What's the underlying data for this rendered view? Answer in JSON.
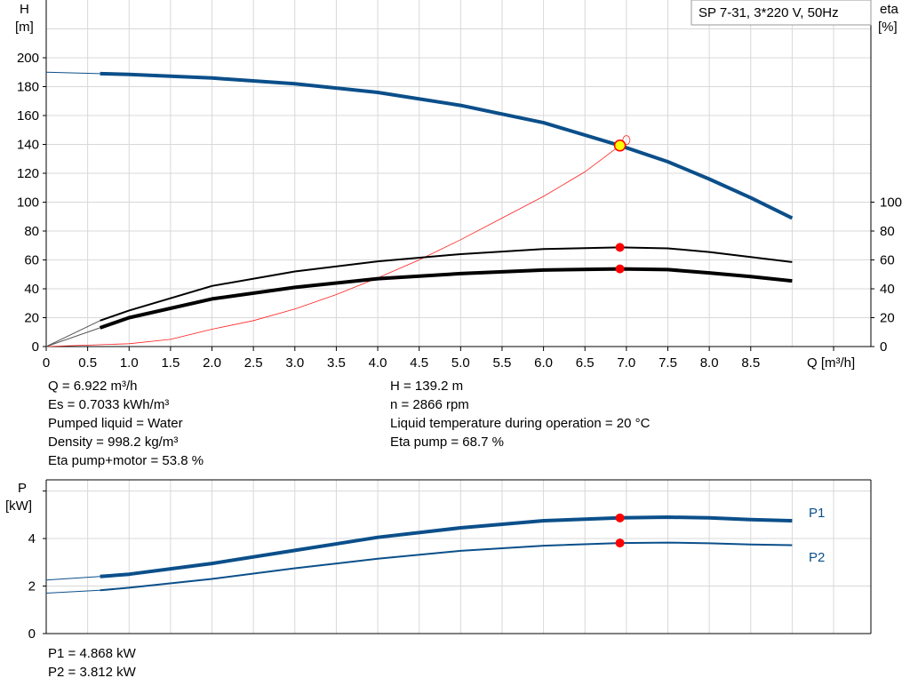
{
  "chart_data": [
    {
      "type": "line",
      "title": "SP 7-31, 3*220 V, 50Hz",
      "xlabel": "Q [m³/h]",
      "ylabel": [
        "H",
        "[m]"
      ],
      "y2label": [
        "eta",
        "[%]"
      ],
      "xlim": [
        0,
        9.95
      ],
      "ylim": [
        0,
        240
      ],
      "y2lim": [
        0,
        240
      ],
      "grid": true,
      "x_ticks": [
        "0",
        "0.5",
        "1.0",
        "1.5",
        "2.0",
        "2.5",
        "3.0",
        "3.5",
        "4.0",
        "4.5",
        "5.0",
        "5.5",
        "6.0",
        "6.5",
        "7.0",
        "7.5",
        "8.0",
        "8.5"
      ],
      "y_ticks": [
        0,
        20,
        40,
        60,
        80,
        100,
        120,
        140,
        160,
        180,
        200
      ],
      "y2_ticks": [
        0,
        20,
        40,
        60,
        80,
        100
      ],
      "series": [
        {
          "id": "H",
          "axis": "left",
          "color": "#0b4f8a",
          "x": [
            0,
            0.65,
            1,
            2,
            3,
            4,
            5,
            6,
            6.922,
            7.5,
            8,
            8.5,
            9
          ],
          "values": [
            190,
            189,
            188.5,
            186,
            182,
            176,
            167,
            155,
            139.2,
            128,
            116,
            103,
            89
          ]
        },
        {
          "id": "eta-pump",
          "axis": "right",
          "color": "#000000",
          "x": [
            0,
            0.65,
            1,
            2,
            3,
            4,
            5,
            6,
            6.922,
            7.5,
            8,
            8.5,
            9
          ],
          "values": [
            0,
            18,
            25,
            42,
            52,
            59,
            64,
            67.5,
            68.7,
            68,
            65.5,
            62,
            58.5
          ]
        },
        {
          "id": "eta-pump-motor",
          "axis": "right",
          "color": "#000000",
          "x": [
            0,
            0.65,
            1,
            2,
            3,
            4,
            5,
            6,
            6.922,
            7.5,
            8,
            8.5,
            9
          ],
          "values": [
            0,
            13,
            20,
            33,
            41,
            47,
            50.5,
            53,
            53.8,
            53.3,
            51,
            48.5,
            45.5
          ]
        },
        {
          "id": "system",
          "axis": "left",
          "color": "#ff2020",
          "x": [
            0,
            1,
            1.5,
            2,
            2.5,
            3,
            3.5,
            4,
            4.5,
            5,
            5.5,
            6,
            6.5,
            6.922,
            7.0
          ],
          "values": [
            0,
            2,
            5,
            12,
            18,
            26,
            36,
            47.5,
            60,
            74,
            89,
            104,
            121,
            139.2,
            143
          ]
        }
      ],
      "duty_point": {
        "Q": 6.922,
        "H": 139.2,
        "eta_pump": 68.7,
        "eta_pump_motor": 53.8
      }
    },
    {
      "type": "line",
      "ylabel": [
        "P",
        "[kW]"
      ],
      "xlim": [
        0,
        9.95
      ],
      "ylim": [
        0,
        6.47
      ],
      "grid": true,
      "y_ticks": [
        0,
        2,
        4
      ],
      "series": [
        {
          "name": "P1",
          "color": "#0b4f8a",
          "x": [
            0,
            0.65,
            1,
            2,
            3,
            4,
            5,
            6,
            6.922,
            7.5,
            8,
            8.5,
            9
          ],
          "values": [
            2.25,
            2.4,
            2.5,
            2.95,
            3.5,
            4.05,
            4.45,
            4.75,
            4.868,
            4.9,
            4.87,
            4.8,
            4.75
          ]
        },
        {
          "name": "P2",
          "color": "#0b4f8a",
          "x": [
            0,
            0.65,
            1,
            2,
            3,
            4,
            5,
            6,
            6.922,
            7.5,
            8,
            8.5,
            9
          ],
          "values": [
            1.7,
            1.82,
            1.93,
            2.3,
            2.75,
            3.15,
            3.48,
            3.7,
            3.812,
            3.83,
            3.8,
            3.75,
            3.72
          ]
        }
      ],
      "duty_point": {
        "Q": 6.922,
        "P1": 4.868,
        "P2": 3.812
      }
    }
  ],
  "info": {
    "left": [
      "Q = 6.922 m³/h",
      "Es = 0.7033 kWh/m³",
      "Pumped liquid = Water",
      "Density = 998.2 kg/m³",
      "Eta pump+motor = 53.8 %"
    ],
    "right": [
      "H = 139.2 m",
      "n = 2866 rpm",
      "Liquid temperature during operation = 20 °C",
      "Eta pump = 68.7 %"
    ],
    "power": [
      "P1 = 4.868 kW",
      "P2 = 3.812 kW"
    ]
  }
}
